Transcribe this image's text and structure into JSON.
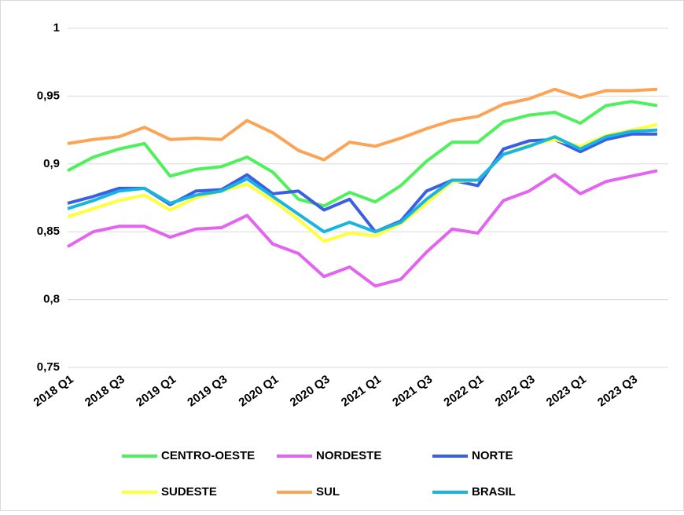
{
  "chart_data": {
    "type": "line",
    "categories": [
      "2018 Q1",
      null,
      "2018 Q3",
      null,
      "2019 Q1",
      null,
      "2019 Q3",
      null,
      "2020 Q1",
      null,
      "2020 Q3",
      null,
      "2021 Q1",
      null,
      "2021 Q3",
      null,
      "2022 Q1",
      null,
      "2022 Q3",
      null,
      "2023 Q1",
      null,
      "2023 Q3",
      null
    ],
    "series": [
      {
        "name": "CENTRO-OESTE",
        "color": "#4ef05c",
        "values": [
          0.895,
          0.905,
          0.911,
          0.915,
          0.891,
          0.896,
          0.898,
          0.905,
          0.894,
          0.874,
          0.869,
          0.879,
          0.872,
          0.884,
          0.902,
          0.916,
          0.916,
          0.931,
          0.936,
          0.938,
          0.93,
          0.943,
          0.946,
          0.943
        ]
      },
      {
        "name": "NORDESTE",
        "color": "#e264f0",
        "values": [
          0.839,
          0.85,
          0.854,
          0.854,
          0.846,
          0.852,
          0.853,
          0.862,
          0.841,
          0.834,
          0.817,
          0.824,
          0.81,
          0.815,
          0.835,
          0.852,
          0.849,
          0.873,
          0.88,
          0.892,
          0.878,
          0.887,
          0.891,
          0.895
        ]
      },
      {
        "name": "NORTE",
        "color": "#3a5fe5",
        "values": [
          0.871,
          0.876,
          0.882,
          0.882,
          0.87,
          0.88,
          0.881,
          0.892,
          0.878,
          0.88,
          0.866,
          0.874,
          0.85,
          0.858,
          0.88,
          0.888,
          0.884,
          0.911,
          0.917,
          0.918,
          0.909,
          0.918,
          0.922,
          0.922
        ]
      },
      {
        "name": "SUDESTE",
        "color": "#ffff3c",
        "values": [
          0.861,
          0.867,
          0.873,
          0.877,
          0.866,
          0.875,
          0.88,
          0.885,
          0.873,
          0.859,
          0.843,
          0.849,
          0.847,
          0.856,
          0.871,
          0.887,
          0.888,
          0.907,
          0.914,
          0.918,
          0.913,
          0.921,
          0.925,
          0.929
        ]
      },
      {
        "name": "SUL",
        "color": "#fba455",
        "values": [
          0.915,
          0.918,
          0.92,
          0.927,
          0.918,
          0.919,
          0.918,
          0.932,
          0.923,
          0.91,
          0.903,
          0.916,
          0.913,
          0.919,
          0.926,
          0.932,
          0.935,
          0.944,
          0.948,
          0.955,
          0.949,
          0.954,
          0.954,
          0.955
        ]
      },
      {
        "name": "BRASIL",
        "color": "#18b5e0",
        "values": [
          0.867,
          0.873,
          0.88,
          0.882,
          0.871,
          0.877,
          0.88,
          0.889,
          0.876,
          0.863,
          0.85,
          0.857,
          0.85,
          0.857,
          0.874,
          0.888,
          0.888,
          0.907,
          0.913,
          0.92,
          0.911,
          0.92,
          0.924,
          0.925
        ]
      }
    ],
    "ylim": [
      0.75,
      1
    ],
    "yticks": [
      {
        "value": 0.75,
        "label": "0,75"
      },
      {
        "value": 0.8,
        "label": "0,8"
      },
      {
        "value": 0.85,
        "label": "0,85"
      },
      {
        "value": 0.9,
        "label": "0,9"
      },
      {
        "value": 0.95,
        "label": "0,95"
      },
      1
    ],
    "grid": true,
    "legend": "bottom"
  }
}
